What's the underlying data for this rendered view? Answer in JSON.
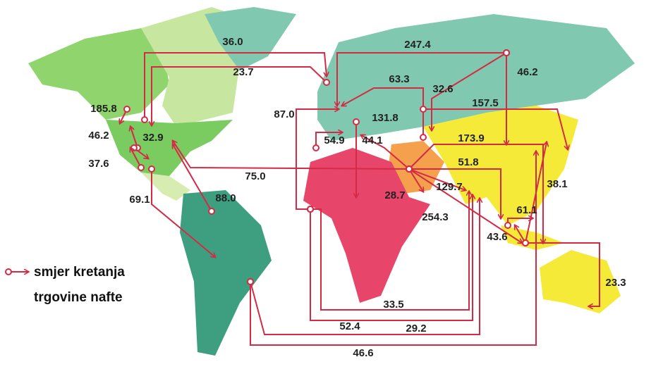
{
  "map": {
    "legend": [
      "smjer kretanja",
      "trgovine nafte"
    ],
    "flows": [
      {
        "label": "36.0"
      },
      {
        "label": "23.7"
      },
      {
        "label": "247.4"
      },
      {
        "label": "46.2"
      },
      {
        "label": "63.3"
      },
      {
        "label": "32.6"
      },
      {
        "label": "157.5"
      },
      {
        "label": "185.8"
      },
      {
        "label": "87.0"
      },
      {
        "label": "131.8"
      },
      {
        "label": "46.2"
      },
      {
        "label": "32.9"
      },
      {
        "label": "173.9"
      },
      {
        "label": "54.9"
      },
      {
        "label": "44.1"
      },
      {
        "label": "37.6"
      },
      {
        "label": "51.8"
      },
      {
        "label": "75.0"
      },
      {
        "label": "38.1"
      },
      {
        "label": "28.7"
      },
      {
        "label": "129.7"
      },
      {
        "label": "69.1"
      },
      {
        "label": "88.0"
      },
      {
        "label": "61.1"
      },
      {
        "label": "254.3"
      },
      {
        "label": "43.6"
      },
      {
        "label": "23.3"
      },
      {
        "label": "33.5"
      },
      {
        "label": "52.4"
      },
      {
        "label": "29.2"
      },
      {
        "label": "46.6"
      }
    ]
  }
}
